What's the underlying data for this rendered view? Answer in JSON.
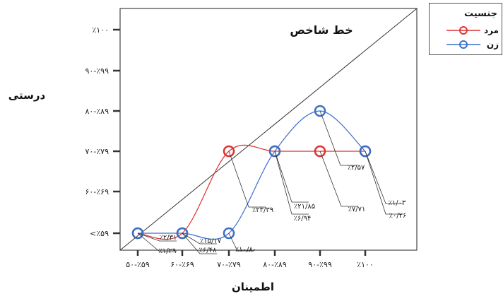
{
  "chart_data": {
    "type": "line",
    "xlabel": "اطمینان",
    "ylabel": "درستی",
    "x_categories": [
      "۵۰-٪۵۹",
      "۶۰-٪۶۹",
      "۷۰-٪۷۹",
      "۸۰-٪۸۹",
      "۹۰-٪۹۹",
      "٪۱۰۰"
    ],
    "y_categories": [
      "<٪۵۹",
      "۶۰-٪۶۹",
      "۷۰-٪۷۹",
      "۸۰-٪۸۹",
      "۹۰-٪۹۹",
      "٪۱۰۰"
    ],
    "reference_line_label": "خط شاخص",
    "legend": {
      "title": "جنسیت",
      "placement": "top-right"
    },
    "series": [
      {
        "name": "مرد",
        "color": "#e03030",
        "y_index": [
          0,
          0,
          2,
          2,
          2,
          2
        ]
      },
      {
        "name": "زن",
        "color": "#3a6fc8",
        "y_index": [
          0,
          0,
          0,
          2,
          3,
          2
        ]
      }
    ],
    "annotations": [
      "٪۲/۳۱",
      "٪۱/۲۹",
      "٪۱۵/۱۷",
      "٪۶/۴۸",
      "٪۱۰/۸۰",
      "٪۲۳/۳۹",
      "٪۲۱/۸۵",
      "٪۶/۹۴",
      "٪۷/۷۱",
      "٪۲/۵۷",
      "٪۱/۰۳",
      "٪۰/۲۶"
    ],
    "grid": false
  }
}
